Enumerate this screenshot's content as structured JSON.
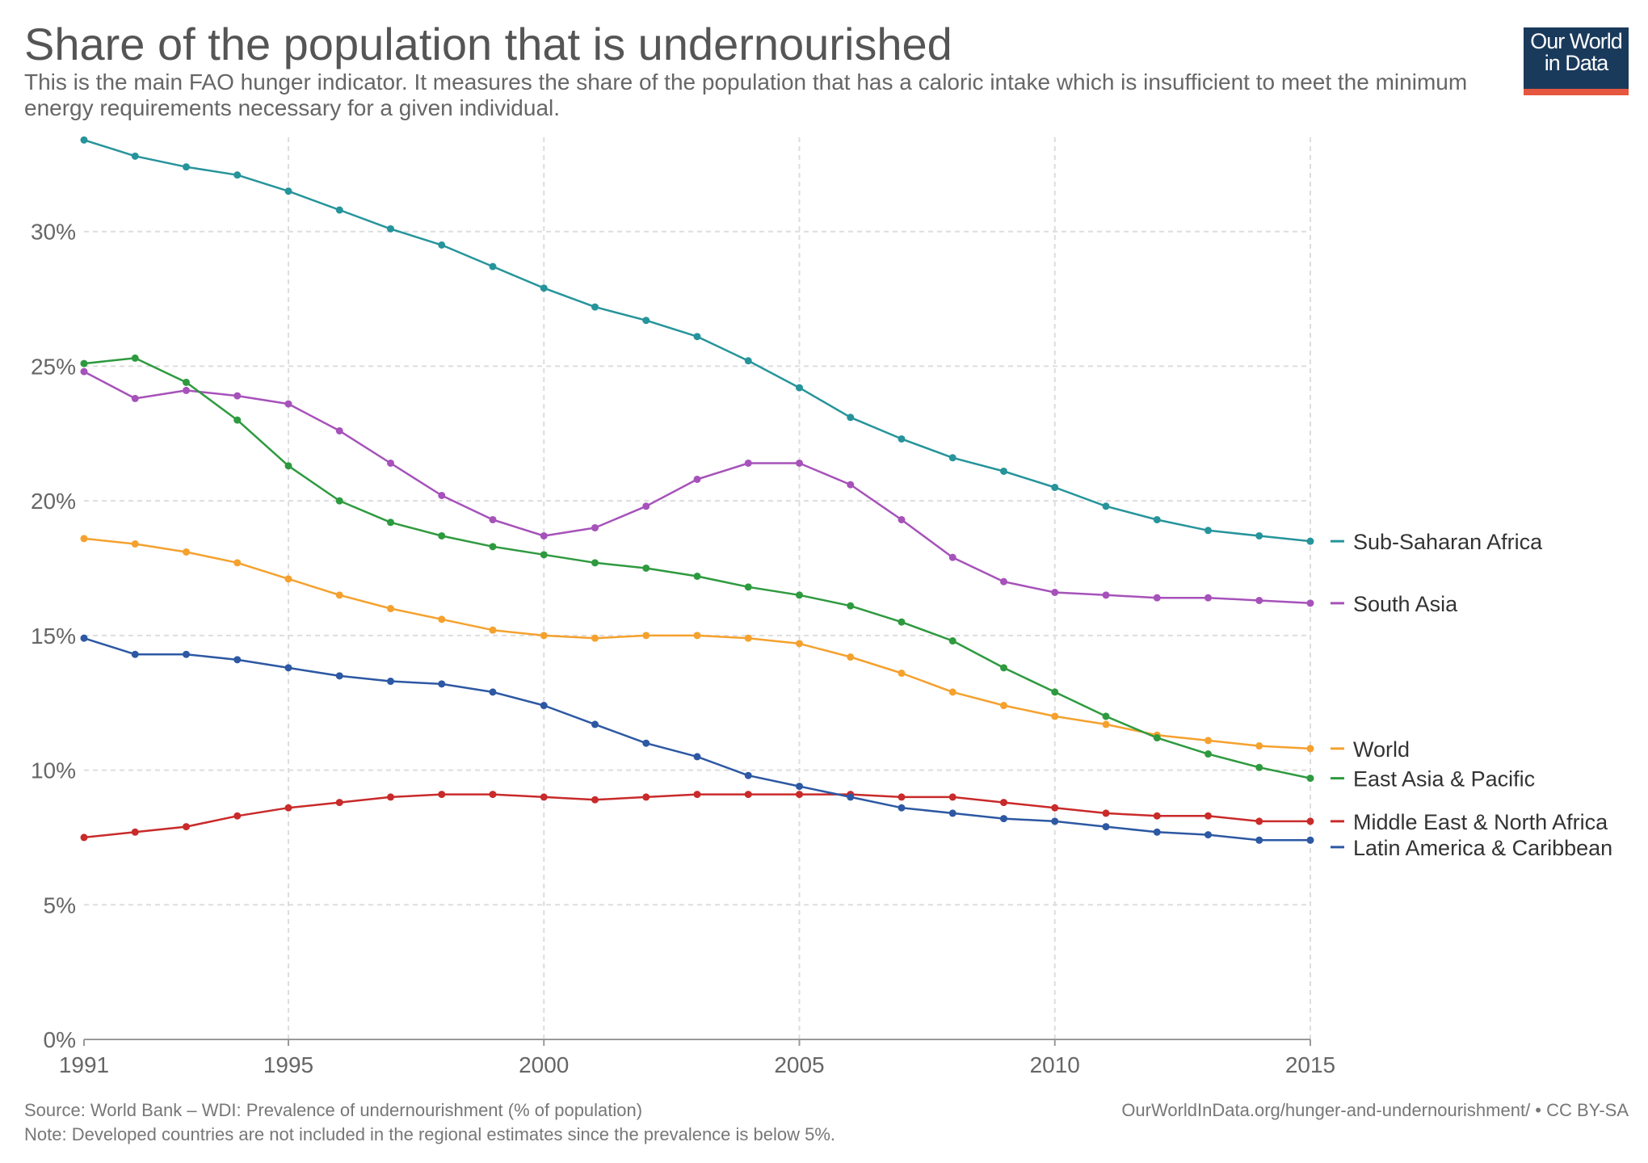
{
  "header": {
    "title": "Share of the population that is undernourished",
    "subtitle": "This is the main FAO hunger indicator. It measures the share of the population that has a caloric intake which is insufficient to meet the minimum energy requirements necessary for a given individual."
  },
  "logo": {
    "line1": "Our World",
    "line2": "in Data",
    "bg_color": "#1a3a5c",
    "accent_color": "#e5573f"
  },
  "footer": {
    "source": "Source: World Bank – WDI: Prevalence of undernourishment (% of population)",
    "note": "Note: Developed countries are not included in the regional estimates since the prevalence is below 5%.",
    "credit": "OurWorldInData.org/hunger-and-undernourishment/ • CC BY-SA"
  },
  "chart_data": {
    "type": "line",
    "title": "Share of the population that is undernourished",
    "xlabel": "",
    "ylabel": "",
    "xlim": [
      1991,
      2015
    ],
    "ylim": [
      0,
      33.5
    ],
    "y_ticks": [
      0,
      5,
      10,
      15,
      20,
      25,
      30
    ],
    "y_tick_labels": [
      "0%",
      "5%",
      "10%",
      "15%",
      "20%",
      "25%",
      "30%"
    ],
    "x_ticks": [
      1991,
      1995,
      2000,
      2005,
      2010,
      2015
    ],
    "x_tick_labels": [
      "1991",
      "1995",
      "2000",
      "2005",
      "2010",
      "2015"
    ],
    "grid": true,
    "legend": "right, labels at line ends",
    "x": [
      1991,
      1992,
      1993,
      1994,
      1995,
      1996,
      1997,
      1998,
      1999,
      2000,
      2001,
      2002,
      2003,
      2004,
      2005,
      2006,
      2007,
      2008,
      2009,
      2010,
      2011,
      2012,
      2013,
      2014,
      2015
    ],
    "series": [
      {
        "name": "Sub-Saharan Africa",
        "color": "#26949b",
        "values": [
          33.4,
          32.8,
          32.4,
          32.1,
          31.5,
          30.8,
          30.1,
          29.5,
          28.7,
          27.9,
          27.2,
          26.7,
          26.1,
          25.2,
          24.2,
          23.1,
          22.3,
          21.6,
          21.1,
          20.5,
          19.8,
          19.3,
          18.9,
          18.7,
          18.5
        ]
      },
      {
        "name": "South Asia",
        "color": "#a652ba",
        "values": [
          24.8,
          23.8,
          24.1,
          23.9,
          23.6,
          22.6,
          21.4,
          20.2,
          19.3,
          18.7,
          19.0,
          19.8,
          20.8,
          21.4,
          21.4,
          20.6,
          19.3,
          17.9,
          17.0,
          16.6,
          16.5,
          16.4,
          16.4,
          16.3,
          16.2
        ]
      },
      {
        "name": "World",
        "color": "#f5a12e",
        "values": [
          18.6,
          18.4,
          18.1,
          17.7,
          17.1,
          16.5,
          16.0,
          15.6,
          15.2,
          15.0,
          14.9,
          15.0,
          15.0,
          14.9,
          14.7,
          14.2,
          13.6,
          12.9,
          12.4,
          12.0,
          11.7,
          11.3,
          11.1,
          10.9,
          10.8
        ]
      },
      {
        "name": "East Asia & Pacific",
        "color": "#2e9a3f",
        "values": [
          25.1,
          25.3,
          24.4,
          23.0,
          21.3,
          20.0,
          19.2,
          18.7,
          18.3,
          18.0,
          17.7,
          17.5,
          17.2,
          16.8,
          16.5,
          16.1,
          15.5,
          14.8,
          13.8,
          12.9,
          12.0,
          11.2,
          10.6,
          10.1,
          9.7
        ]
      },
      {
        "name": "Middle East & North Africa",
        "color": "#c92a2a",
        "values": [
          7.5,
          7.7,
          7.9,
          8.3,
          8.6,
          8.8,
          9.0,
          9.1,
          9.1,
          9.0,
          8.9,
          9.0,
          9.1,
          9.1,
          9.1,
          9.1,
          9.0,
          9.0,
          8.8,
          8.6,
          8.4,
          8.3,
          8.3,
          8.1,
          8.1
        ]
      },
      {
        "name": "Latin America & Caribbean",
        "color": "#2d58a3",
        "values": [
          14.9,
          14.3,
          14.3,
          14.1,
          13.8,
          13.5,
          13.3,
          13.2,
          12.9,
          12.4,
          11.7,
          11.0,
          10.5,
          9.8,
          9.4,
          9.0,
          8.6,
          8.4,
          8.2,
          8.1,
          7.9,
          7.7,
          7.6,
          7.4,
          7.4
        ]
      }
    ]
  }
}
